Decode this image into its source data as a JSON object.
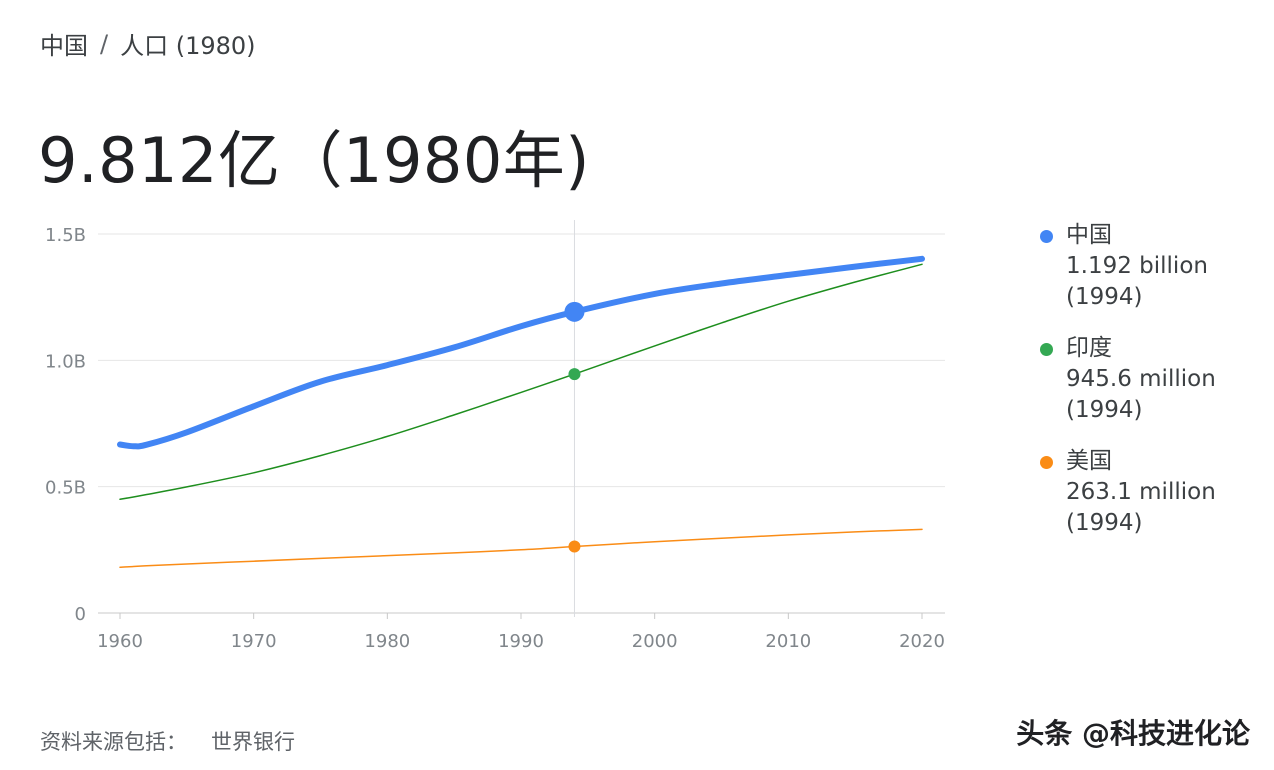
{
  "breadcrumb": {
    "country": "中国",
    "separator": "/",
    "topic": "人口 (1980)"
  },
  "headline": "9.812亿（1980年)",
  "source": {
    "label": "资料来源包括：",
    "name": "世界银行"
  },
  "watermark": "头条 @科技进化论",
  "legend": [
    {
      "name": "中国",
      "value": "1.192 billion",
      "year": "(1994)",
      "color": "#4285f4"
    },
    {
      "name": "印度",
      "value": "945.6 million",
      "year": "(1994)",
      "color": "#34a853"
    },
    {
      "name": "美国",
      "value": "263.1 million",
      "year": "(1994)",
      "color": "#fa8c16"
    }
  ],
  "chart_data": {
    "type": "line",
    "title": "",
    "xlabel": "",
    "ylabel": "",
    "xlim": [
      1960,
      2020
    ],
    "ylim": [
      0,
      1.5
    ],
    "x_ticks": [
      1960,
      1970,
      1980,
      1990,
      2000,
      2010,
      2020
    ],
    "x_tick_labels": [
      "1960",
      "1970",
      "1980",
      "1990",
      "2000",
      "2010",
      "2020"
    ],
    "y_ticks": [
      0,
      0.5,
      1.0,
      1.5
    ],
    "y_tick_labels": [
      "0",
      "0.5B",
      "1.0B",
      "1.5B"
    ],
    "grid": true,
    "legend_position": "right",
    "hover_x": 1994,
    "x": [
      1960,
      1961,
      1962,
      1965,
      1970,
      1975,
      1980,
      1985,
      1990,
      1994,
      2000,
      2005,
      2010,
      2015,
      2020
    ],
    "series": [
      {
        "name": "中国",
        "color": "#4285f4",
        "highlight": true,
        "values": [
          0.667,
          0.66,
          0.666,
          0.715,
          0.818,
          0.916,
          0.981,
          1.051,
          1.135,
          1.192,
          1.263,
          1.304,
          1.338,
          1.371,
          1.402
        ]
      },
      {
        "name": "印度",
        "color": "#1e8e1e",
        "values": [
          0.45,
          0.459,
          0.469,
          0.499,
          0.555,
          0.623,
          0.699,
          0.784,
          0.873,
          0.9456,
          1.057,
          1.148,
          1.234,
          1.31,
          1.38
        ]
      },
      {
        "name": "美国",
        "color": "#fa8c16",
        "values": [
          0.181,
          0.184,
          0.187,
          0.194,
          0.205,
          0.216,
          0.227,
          0.238,
          0.25,
          0.2631,
          0.282,
          0.296,
          0.309,
          0.321,
          0.331
        ]
      }
    ]
  }
}
